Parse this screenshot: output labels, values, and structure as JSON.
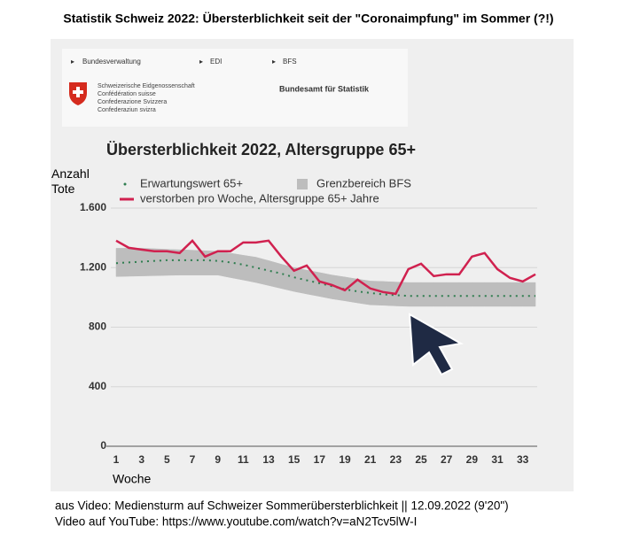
{
  "header": {
    "title": "Statistik Schweiz 2022: Übersterblichkeit seit der \"Coronaimpfung\" im Sommer (?!)"
  },
  "screenshot": {
    "breadcrumb": [
      "Bundesverwaltung",
      "EDI",
      "BFS"
    ],
    "org_names": [
      "Schweizerische Eidgenossenschaft",
      "Confédération suisse",
      "Confederazione Svizzera",
      "Confederaziun svizra"
    ],
    "office": "Bundesamt für Statistik"
  },
  "chart_data": {
    "type": "line",
    "title": "Übersterblichkeit 2022, Altersgruppe 65+",
    "y_label": "Anzahl Tote",
    "x_label": "Woche",
    "x": [
      1,
      2,
      3,
      4,
      5,
      6,
      7,
      8,
      9,
      10,
      11,
      12,
      13,
      14,
      15,
      16,
      17,
      18,
      19,
      20,
      21,
      22,
      23,
      24,
      25,
      26,
      27,
      28,
      29,
      30,
      31,
      32,
      33,
      34
    ],
    "xlim": [
      1,
      34
    ],
    "xticks": [
      1,
      3,
      5,
      7,
      9,
      11,
      13,
      15,
      17,
      19,
      21,
      23,
      25,
      27,
      29,
      31,
      33
    ],
    "ylim": [
      0,
      1600
    ],
    "yticks": [
      0,
      {
        "value": 400,
        "label": "400"
      },
      {
        "value": 800,
        "label": "800"
      },
      {
        "value": 1200,
        "label": "1.200"
      },
      {
        "value": 1600,
        "label": "1.600"
      }
    ],
    "grid": true,
    "series": [
      {
        "name": "Grenzbereich BFS",
        "style": "band",
        "color": "#bdbdbd",
        "upper": [
          1330,
          1330,
          1330,
          1327,
          1323,
          1320,
          1317,
          1313,
          1310,
          1297,
          1283,
          1270,
          1247,
          1223,
          1200,
          1183,
          1167,
          1150,
          1137,
          1123,
          1110,
          1107,
          1103,
          1100,
          1100,
          1100,
          1100,
          1100,
          1100,
          1100,
          1100,
          1100,
          1100,
          1100
        ],
        "lower": [
          1140,
          1142,
          1144,
          1146,
          1148,
          1150,
          1150,
          1150,
          1150,
          1133,
          1117,
          1100,
          1080,
          1060,
          1040,
          1023,
          1007,
          990,
          977,
          963,
          950,
          947,
          943,
          940,
          940,
          940,
          940,
          940,
          940,
          940,
          940,
          940,
          940,
          940
        ]
      },
      {
        "name": "Erwartungswert 65+",
        "style": "dotted",
        "color": "#2e7d4f",
        "values": [
          1230,
          1235,
          1240,
          1245,
          1250,
          1250,
          1250,
          1250,
          1245,
          1235,
          1220,
          1200,
          1180,
          1160,
          1135,
          1115,
          1095,
          1075,
          1055,
          1040,
          1030,
          1020,
          1015,
          1010,
          1010,
          1010,
          1010,
          1010,
          1010,
          1010,
          1010,
          1010,
          1010,
          1010
        ]
      },
      {
        "name": "verstorben pro Woche, Altersgruppe 65+ Jahre",
        "style": "solid",
        "color": "#d0214f",
        "values": [
          1381,
          1333,
          1321,
          1310,
          1310,
          1298,
          1381,
          1274,
          1310,
          1310,
          1369,
          1369,
          1381,
          1274,
          1179,
          1214,
          1107,
          1083,
          1048,
          1119,
          1060,
          1036,
          1024,
          1190,
          1226,
          1143,
          1155,
          1155,
          1274,
          1298,
          1190,
          1131,
          1107,
          1155
        ]
      }
    ]
  },
  "footer": {
    "lines": [
      "aus Video: Mediensturm auf Schweizer Sommerübersterblichkeit || 12.09.2022   (9'20\")",
      "Video auf YouTube: https://www.youtube.com/watch?v=aN2Tcv5lW-I"
    ]
  }
}
